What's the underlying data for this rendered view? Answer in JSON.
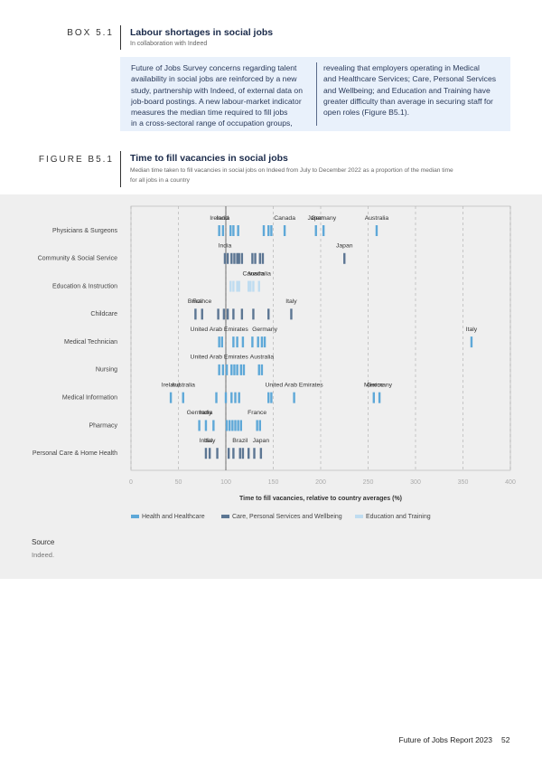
{
  "box": {
    "label": "BOX 5.1",
    "title": "Labour shortages in social jobs",
    "subtitle": "In collaboration with Indeed",
    "left_lines": [
      "Future of Jobs Survey concerns regarding talent",
      "availability in social jobs are reinforced by a new",
      "study, partnership with Indeed, of external data on",
      "job-board postings. A new labour-market indicator",
      "measures the median time required to fill jobs",
      "in a cross-sectoral range of occupation groups,"
    ],
    "right_lines": [
      "revealing that employers operating in Medical",
      "and Healthcare Services; Care, Personal Services",
      "and Wellbeing; and Education and Training have",
      "greater difficulty than average in securing staff for",
      "open roles (Figure B5.1)."
    ]
  },
  "figure": {
    "label": "FIGURE B5.1"
  },
  "chart_data": {
    "type": "strip",
    "title": "Time to fill vacancies in social jobs",
    "subtitle_lines": [
      "Median time taken to fill vacancies in social jobs on Indeed from July to December 2022 as a proportion of the median time",
      "for all jobs in a country"
    ],
    "x_label": "Time to fill vacancies, relative to country averages (%)",
    "categories": [
      "Physicians & Surgeons",
      "Community & Social Service",
      "Education & Instruction",
      "Childcare",
      "Medical Technician",
      "Nursing",
      "Medical Information",
      "Pharmacy",
      "Personal Care & Home Health"
    ],
    "xlim": [
      0,
      400
    ],
    "xticks": [
      0,
      50,
      100,
      150,
      200,
      250,
      300,
      350,
      400
    ],
    "grid": true,
    "reference_line": 100,
    "series": [
      {
        "name": "Health and Healthcare",
        "color": "#5ea8d8",
        "values": [
          [
            93,
            97,
            105,
            108,
            113,
            140,
            145,
            148,
            162,
            195,
            203,
            259
          ],
          null,
          null,
          null,
          [
            93,
            96,
            108,
            112,
            118,
            128,
            134,
            138,
            141,
            359
          ],
          [
            93,
            97,
            101,
            106,
            109,
            112,
            116,
            119,
            135,
            138
          ],
          [
            42,
            55,
            90,
            100,
            106,
            110,
            114,
            145,
            148,
            172,
            256,
            262
          ],
          [
            72,
            79,
            87,
            101,
            104,
            107,
            110,
            113,
            116,
            133,
            136
          ],
          null
        ],
        "labels": [
          [
            "Ireland",
            "India",
            null,
            null,
            null,
            null,
            null,
            null,
            "Canada",
            "Japan",
            "Germany",
            "Australia"
          ],
          null,
          null,
          null,
          [
            "United Arab Emirates",
            null,
            null,
            null,
            null,
            null,
            null,
            null,
            "Germany",
            "Italy"
          ],
          [
            "United Arab Emirates",
            null,
            null,
            null,
            null,
            null,
            null,
            null,
            null,
            "Australia"
          ],
          [
            "Ireland",
            "Australia",
            null,
            null,
            null,
            null,
            null,
            null,
            null,
            "United Arab Emirates",
            "Mexico",
            "Germany"
          ],
          [
            "Germany",
            "India",
            null,
            null,
            null,
            null,
            null,
            null,
            null,
            "France",
            null
          ],
          null
        ]
      },
      {
        "name": "Care, Personal Services and Wellbeing",
        "color": "#5c7693",
        "values": [
          null,
          [
            99,
            102,
            106,
            109,
            112,
            114,
            117,
            128,
            131,
            136,
            139,
            225
          ],
          null,
          [
            68,
            75,
            92,
            98,
            102,
            108,
            117,
            129,
            145,
            169
          ],
          null,
          null,
          null,
          null,
          [
            79,
            83,
            91,
            103,
            108,
            115,
            118,
            124,
            130,
            137
          ]
        ],
        "labels": [
          null,
          [
            "India",
            null,
            null,
            null,
            null,
            null,
            null,
            null,
            null,
            null,
            null,
            "Japan"
          ],
          null,
          [
            "Brazil",
            "France",
            null,
            null,
            null,
            null,
            null,
            null,
            null,
            "Italy"
          ],
          null,
          null,
          null,
          null,
          [
            "India",
            "Italy",
            null,
            null,
            null,
            "Brazil",
            null,
            null,
            null,
            "Japan"
          ]
        ]
      },
      {
        "name": "Education and Training",
        "color": "#bfdcf0",
        "values": [
          null,
          null,
          [
            105,
            108,
            112,
            114,
            124,
            126,
            129,
            135
          ],
          null,
          null,
          null,
          null,
          null,
          null
        ],
        "labels": [
          null,
          null,
          [
            null,
            null,
            null,
            null,
            null,
            null,
            "Canada",
            "Australia"
          ],
          null,
          null,
          null,
          null,
          null,
          null
        ]
      }
    ]
  },
  "source": {
    "label": "Source",
    "text": "Indeed."
  },
  "footer": {
    "report": "Future of Jobs Report 2023",
    "page": "52"
  }
}
